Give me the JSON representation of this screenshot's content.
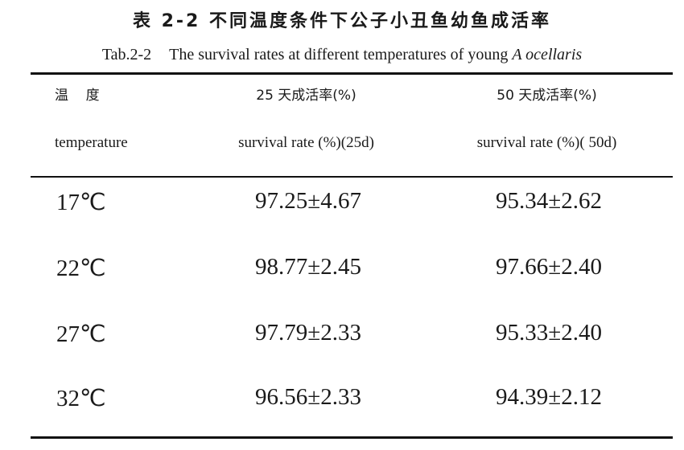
{
  "caption": {
    "title_cn": "表 2-2 不同温度条件下公子小丑鱼幼鱼成活率",
    "label_en": "Tab.2-2",
    "title_en": "The survival rates at different temperatures of young",
    "species_en": "A ocellaris"
  },
  "table": {
    "headers": {
      "temperature_cn": "温    度",
      "temperature_en": "temperature",
      "rate25_cn": "25 天成活率(%)",
      "rate25_en": "survival rate (%)(25d)",
      "rate50_cn": "50 天成活率(%)",
      "rate50_en": "survival rate (%)( 50d)"
    },
    "rows": [
      {
        "temp": "17℃",
        "rate25": "97.25±4.67",
        "rate50": "95.34±2.62"
      },
      {
        "temp": "22℃",
        "rate25": "98.77±2.45",
        "rate50": "97.66±2.40"
      },
      {
        "temp": "27℃",
        "rate25": "97.79±2.33",
        "rate50": "95.33±2.40"
      },
      {
        "temp": "32℃",
        "rate25": "96.56±2.33",
        "rate50": "94.39±2.12"
      }
    ]
  }
}
